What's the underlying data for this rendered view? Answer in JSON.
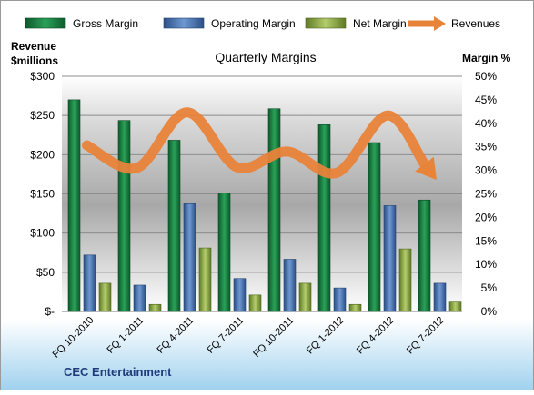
{
  "chart_data": {
    "type": "bar",
    "title": "Quarterly Margins",
    "left_axis_label": [
      "Revenue",
      "$millions"
    ],
    "right_axis_label": "Margin %",
    "footer": "CEC Entertainment",
    "categories": [
      "FQ 10-2010",
      "FQ 1-2011",
      "FQ 4-2011",
      "FQ 7-2011",
      "FQ 10-2011",
      "FQ 1-2012",
      "FQ 4-2012",
      "FQ 7-2012"
    ],
    "series": [
      {
        "name": "Gross Margin",
        "axis": "right",
        "type": "bar",
        "color": "#1f8a48",
        "values": [
          45,
          40.6,
          36.4,
          25.2,
          43.1,
          39.7,
          35.9,
          23.7
        ]
      },
      {
        "name": "Operating Margin",
        "axis": "right",
        "type": "bar",
        "color": "#4a78b8",
        "values": [
          12,
          5.6,
          22.9,
          7,
          11.1,
          5,
          22.5,
          6
        ]
      },
      {
        "name": "Net Margin",
        "axis": "right",
        "type": "bar",
        "color": "#8fac4a",
        "values": [
          6,
          1.5,
          13.5,
          3.5,
          6,
          1.5,
          13.3,
          2
        ]
      },
      {
        "name": "Revenues",
        "axis": "left",
        "type": "line",
        "color": "#e8833a",
        "values": [
          212,
          183,
          254,
          184,
          204,
          177,
          250,
          188
        ]
      }
    ],
    "y_left": {
      "min": 0,
      "max": 300,
      "ticks": [
        "$-",
        "$50",
        "$100",
        "$150",
        "$200",
        "$250",
        "$300"
      ]
    },
    "y_right": {
      "min": 0,
      "max": 50,
      "ticks": [
        "0%",
        "5%",
        "10%",
        "15%",
        "20%",
        "25%",
        "30%",
        "35%",
        "40%",
        "45%",
        "50%"
      ]
    },
    "grid": true,
    "legend_position": "top"
  }
}
